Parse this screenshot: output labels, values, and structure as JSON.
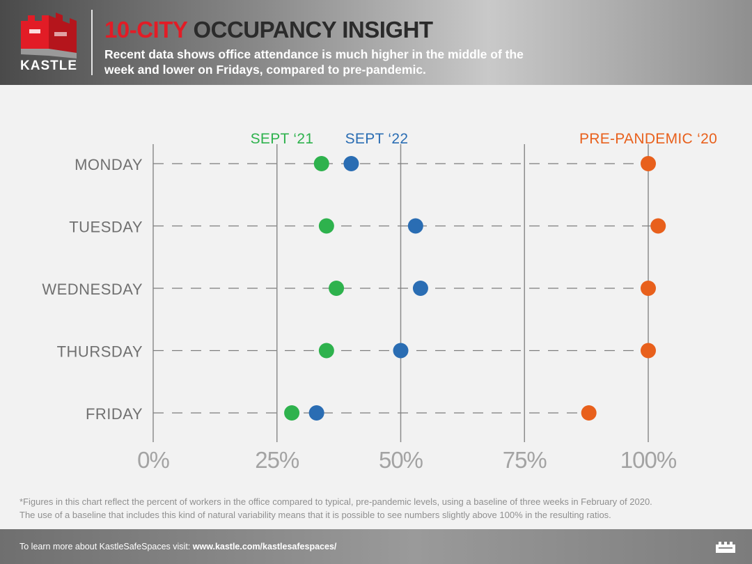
{
  "header": {
    "title_highlight": "10-CITY",
    "title_rest": "OCCUPANCY INSIGHT",
    "subtitle": "Recent data shows office attendance is much higher in the middle of the week and lower on Fridays, compared to pre-pandemic.",
    "logo_text": "KASTLE",
    "logo_icon": "castle-icon",
    "colors": {
      "brand_red": "#e21c26",
      "title_dark": "#2b2b2b"
    }
  },
  "chart_data": {
    "type": "scatter",
    "categories": [
      "MONDAY",
      "TUESDAY",
      "WEDNESDAY",
      "THURSDAY",
      "FRIDAY"
    ],
    "x_ticks": [
      "0%",
      "25%",
      "50%",
      "75%",
      "100%"
    ],
    "xlim": [
      0,
      100
    ],
    "grid": "vertical",
    "series": [
      {
        "name": "SEPT '21",
        "label": "SEPT ‘21",
        "color": "#2eb24d",
        "values": [
          34,
          35,
          37,
          35,
          28
        ]
      },
      {
        "name": "SEPT '22",
        "label": "SEPT ‘22",
        "color": "#2a6db3",
        "values": [
          40,
          53,
          54,
          50,
          33
        ]
      },
      {
        "name": "PRE-PANDEMIC '20",
        "label": "PRE-PANDEMIC ‘20",
        "color": "#e8601c",
        "values": [
          100,
          102,
          100,
          100,
          88
        ]
      }
    ]
  },
  "footnote": {
    "line1": "*Figures in this chart reflect the percent of workers in the office compared to typical, pre-pandemic levels, using a baseline of three weeks in February of 2020.",
    "line2": "The use of a baseline that includes this kind of natural variability means that it is possible to see numbers slightly above 100% in the resulting ratios."
  },
  "footer": {
    "text": "To learn more about KastleSafeSpaces visit:",
    "link": "www.kastle.com/kastlesafespaces/",
    "icon": "castle-icon"
  }
}
